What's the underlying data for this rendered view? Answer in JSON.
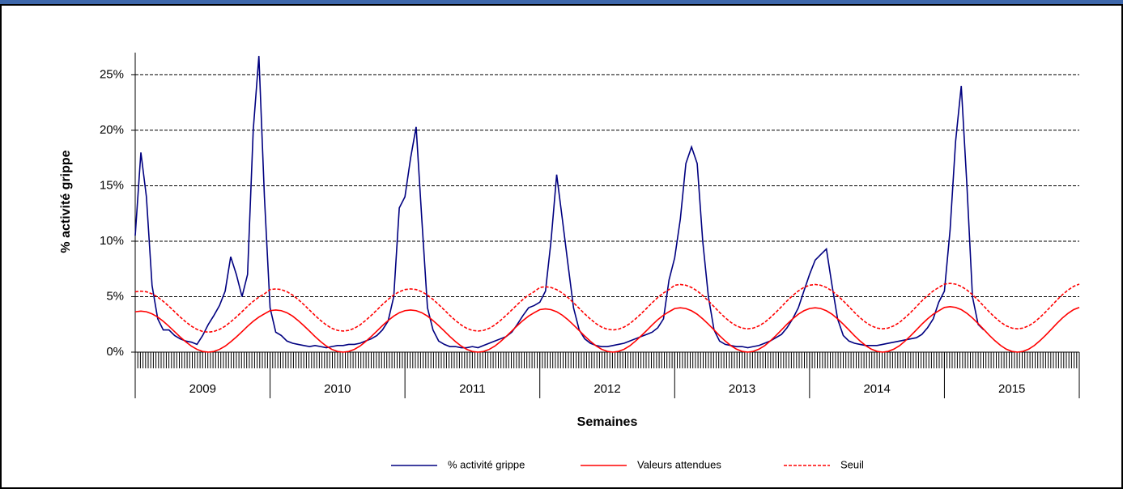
{
  "chart_data": {
    "type": "line",
    "x_label": "Semaines",
    "y_label": "% activité grippe",
    "categories": [
      "2009",
      "2010",
      "2011",
      "2012",
      "2013",
      "2014",
      "2015"
    ],
    "xlim": [
      2009,
      2016
    ],
    "ylim": [
      0,
      27
    ],
    "yticks": [
      {
        "value": 0,
        "label": "0%"
      },
      {
        "value": 5,
        "label": "5%"
      },
      {
        "value": 10,
        "label": "10%"
      },
      {
        "value": 15,
        "label": "15%"
      },
      {
        "value": 20,
        "label": "20%"
      },
      {
        "value": 25,
        "label": "25%"
      }
    ],
    "grid": true,
    "legend": "bottom",
    "x": [
      2009,
      2009.042,
      2009.083,
      2009.125,
      2009.167,
      2009.208,
      2009.25,
      2009.292,
      2009.333,
      2009.375,
      2009.417,
      2009.458,
      2009.5,
      2009.542,
      2009.583,
      2009.625,
      2009.667,
      2009.708,
      2009.75,
      2009.792,
      2009.833,
      2009.875,
      2009.917,
      2009.958,
      2010,
      2010.042,
      2010.083,
      2010.125,
      2010.167,
      2010.208,
      2010.25,
      2010.292,
      2010.333,
      2010.375,
      2010.417,
      2010.458,
      2010.5,
      2010.542,
      2010.583,
      2010.625,
      2010.667,
      2010.708,
      2010.75,
      2010.792,
      2010.833,
      2010.875,
      2010.917,
      2010.958,
      2011,
      2011.042,
      2011.083,
      2011.125,
      2011.167,
      2011.208,
      2011.25,
      2011.292,
      2011.333,
      2011.375,
      2011.417,
      2011.458,
      2011.5,
      2011.542,
      2011.583,
      2011.625,
      2011.667,
      2011.708,
      2011.75,
      2011.792,
      2011.833,
      2011.875,
      2011.917,
      2011.958,
      2012,
      2012.042,
      2012.083,
      2012.125,
      2012.167,
      2012.208,
      2012.25,
      2012.292,
      2012.333,
      2012.375,
      2012.417,
      2012.458,
      2012.5,
      2012.542,
      2012.583,
      2012.625,
      2012.667,
      2012.708,
      2012.75,
      2012.792,
      2012.833,
      2012.875,
      2012.917,
      2012.958,
      2013,
      2013.042,
      2013.083,
      2013.125,
      2013.167,
      2013.208,
      2013.25,
      2013.292,
      2013.333,
      2013.375,
      2013.417,
      2013.458,
      2013.5,
      2013.542,
      2013.583,
      2013.625,
      2013.667,
      2013.708,
      2013.75,
      2013.792,
      2013.833,
      2013.875,
      2013.917,
      2013.958,
      2014,
      2014.042,
      2014.083,
      2014.125,
      2014.167,
      2014.208,
      2014.25,
      2014.292,
      2014.333,
      2014.375,
      2014.417,
      2014.458,
      2014.5,
      2014.542,
      2014.583,
      2014.625,
      2014.667,
      2014.708,
      2014.75,
      2014.792,
      2014.833,
      2014.875,
      2014.917,
      2014.958,
      2015,
      2015.042,
      2015.083,
      2015.125,
      2015.167,
      2015.208,
      2015.25,
      2015.292,
      2015.333,
      2015.375,
      2015.417,
      2015.458,
      2015.5,
      2015.542,
      2015.583,
      2015.625,
      2015.667,
      2015.708,
      2015.75,
      2015.792,
      2015.833,
      2015.875,
      2015.917,
      2015.958,
      2016
    ],
    "series": [
      {
        "name": "% activité grippe",
        "color": "#000080",
        "dash": false,
        "values": [
          10.5,
          18,
          14,
          6,
          3,
          2,
          2,
          1.5,
          1.2,
          1,
          0.9,
          0.7,
          1.5,
          2.5,
          3.3,
          4.2,
          5.5,
          8.6,
          7,
          5,
          7,
          20,
          26.7,
          14,
          4,
          1.8,
          1.5,
          1,
          0.8,
          0.7,
          0.6,
          0.5,
          0.6,
          0.5,
          0.4,
          0.5,
          0.6,
          0.6,
          0.7,
          0.7,
          0.8,
          1,
          1.2,
          1.5,
          2,
          2.8,
          5,
          13,
          14,
          17.5,
          20.3,
          12,
          4,
          2,
          1,
          0.7,
          0.5,
          0.5,
          0.4,
          0.4,
          0.5,
          0.4,
          0.6,
          0.8,
          1,
          1.2,
          1.4,
          1.8,
          2.5,
          3.3,
          4,
          4.2,
          4.5,
          5.5,
          10,
          16,
          12,
          8,
          4,
          2,
          1.2,
          0.8,
          0.6,
          0.5,
          0.5,
          0.6,
          0.7,
          0.8,
          1,
          1.2,
          1.4,
          1.6,
          1.8,
          2.2,
          3,
          6.5,
          8.5,
          12,
          17,
          18.5,
          17,
          10,
          5,
          2,
          1,
          0.7,
          0.6,
          0.5,
          0.5,
          0.4,
          0.5,
          0.6,
          0.8,
          1,
          1.3,
          1.6,
          2.2,
          3,
          4,
          5.5,
          7,
          8.3,
          8.8,
          9.3,
          6,
          3,
          1.5,
          1,
          0.8,
          0.7,
          0.6,
          0.6,
          0.6,
          0.7,
          0.8,
          0.9,
          1,
          1.1,
          1.2,
          1.3,
          1.6,
          2.2,
          3,
          4.5,
          5.5,
          11,
          19,
          24,
          15,
          5,
          2.5,
          2,
          null,
          null,
          null,
          null,
          null,
          null,
          null,
          null,
          null,
          null,
          null,
          null,
          null,
          null,
          null,
          null,
          null
        ]
      },
      {
        "name": "Valeurs attendues",
        "color": "#ff0000",
        "dash": false,
        "values": [
          3.64,
          3.7,
          3.64,
          3.45,
          3.16,
          2.78,
          2.33,
          1.85,
          1.37,
          0.93,
          0.54,
          0.25,
          0.06,
          0,
          0.06,
          0.25,
          0.54,
          0.93,
          1.37,
          1.85,
          2.33,
          2.78,
          3.16,
          3.45,
          3.74,
          3.8,
          3.74,
          3.55,
          3.25,
          2.85,
          2.39,
          1.9,
          1.41,
          0.95,
          0.55,
          0.25,
          0.06,
          0,
          0.06,
          0.25,
          0.55,
          0.95,
          1.41,
          1.9,
          2.39,
          2.85,
          3.25,
          3.55,
          3.74,
          3.8,
          3.74,
          3.55,
          3.25,
          2.85,
          2.39,
          1.9,
          1.41,
          0.95,
          0.55,
          0.25,
          0.06,
          0,
          0.06,
          0.25,
          0.55,
          0.95,
          1.41,
          1.9,
          2.39,
          2.85,
          3.25,
          3.55,
          3.83,
          3.9,
          3.83,
          3.64,
          3.33,
          2.93,
          2.45,
          1.95,
          1.45,
          0.98,
          0.57,
          0.26,
          0.07,
          0,
          0.07,
          0.26,
          0.57,
          0.98,
          1.45,
          1.95,
          2.45,
          2.93,
          3.33,
          3.64,
          3.93,
          4,
          3.93,
          3.73,
          3.42,
          3,
          2.52,
          2,
          1.48,
          1,
          0.58,
          0.27,
          0.07,
          0,
          0.07,
          0.27,
          0.58,
          1,
          1.48,
          2,
          2.52,
          3,
          3.42,
          3.73,
          3.93,
          4,
          3.93,
          3.73,
          3.42,
          3,
          2.52,
          2,
          1.48,
          1,
          0.58,
          0.27,
          0.07,
          0,
          0.07,
          0.27,
          0.58,
          1,
          1.48,
          2,
          2.52,
          3,
          3.42,
          3.73,
          4.03,
          4.1,
          4.03,
          3.83,
          3.5,
          3.08,
          2.58,
          2.05,
          1.52,
          1.03,
          0.6,
          0.27,
          0.07,
          0,
          0.07,
          0.27,
          0.6,
          1.03,
          1.52,
          2.05,
          2.58,
          3.08,
          3.5,
          3.83,
          4.03
        ]
      },
      {
        "name": "Seuil",
        "color": "#ff0000",
        "dash": true,
        "values": [
          5.44,
          5.5,
          5.44,
          5.25,
          4.96,
          4.58,
          4.13,
          3.65,
          3.17,
          2.73,
          2.34,
          2.05,
          1.86,
          1.8,
          1.86,
          2.05,
          2.34,
          2.73,
          3.17,
          3.65,
          4.13,
          4.58,
          4.96,
          5.25,
          5.64,
          5.7,
          5.64,
          5.45,
          5.15,
          4.75,
          4.29,
          3.8,
          3.31,
          2.85,
          2.45,
          2.15,
          1.96,
          1.9,
          1.96,
          2.15,
          2.45,
          2.85,
          3.31,
          3.8,
          4.29,
          4.75,
          5.15,
          5.45,
          5.64,
          5.7,
          5.64,
          5.45,
          5.15,
          4.75,
          4.29,
          3.8,
          3.31,
          2.85,
          2.45,
          2.15,
          1.96,
          1.9,
          1.96,
          2.15,
          2.45,
          2.85,
          3.31,
          3.8,
          4.29,
          4.75,
          5.15,
          5.45,
          5.83,
          5.9,
          5.83,
          5.64,
          5.33,
          4.93,
          4.45,
          3.95,
          3.45,
          2.98,
          2.57,
          2.26,
          2.07,
          2,
          2.07,
          2.26,
          2.57,
          2.98,
          3.45,
          3.95,
          4.45,
          4.93,
          5.33,
          5.64,
          6.03,
          6.1,
          6.03,
          5.83,
          5.52,
          5.1,
          4.62,
          4.1,
          3.58,
          3.1,
          2.68,
          2.37,
          2.17,
          2.1,
          2.17,
          2.37,
          2.68,
          3.1,
          3.58,
          4.1,
          4.62,
          5.1,
          5.52,
          5.83,
          6.03,
          6.1,
          6.03,
          5.83,
          5.52,
          5.1,
          4.62,
          4.1,
          3.58,
          3.1,
          2.68,
          2.37,
          2.17,
          2.1,
          2.17,
          2.37,
          2.68,
          3.1,
          3.58,
          4.1,
          4.62,
          5.1,
          5.52,
          5.83,
          6.13,
          6.2,
          6.13,
          5.93,
          5.6,
          5.18,
          4.68,
          4.15,
          3.62,
          3.13,
          2.7,
          2.37,
          2.17,
          2.1,
          2.17,
          2.37,
          2.7,
          3.13,
          3.62,
          4.15,
          4.68,
          5.18,
          5.6,
          5.93,
          6.13
        ]
      }
    ]
  }
}
